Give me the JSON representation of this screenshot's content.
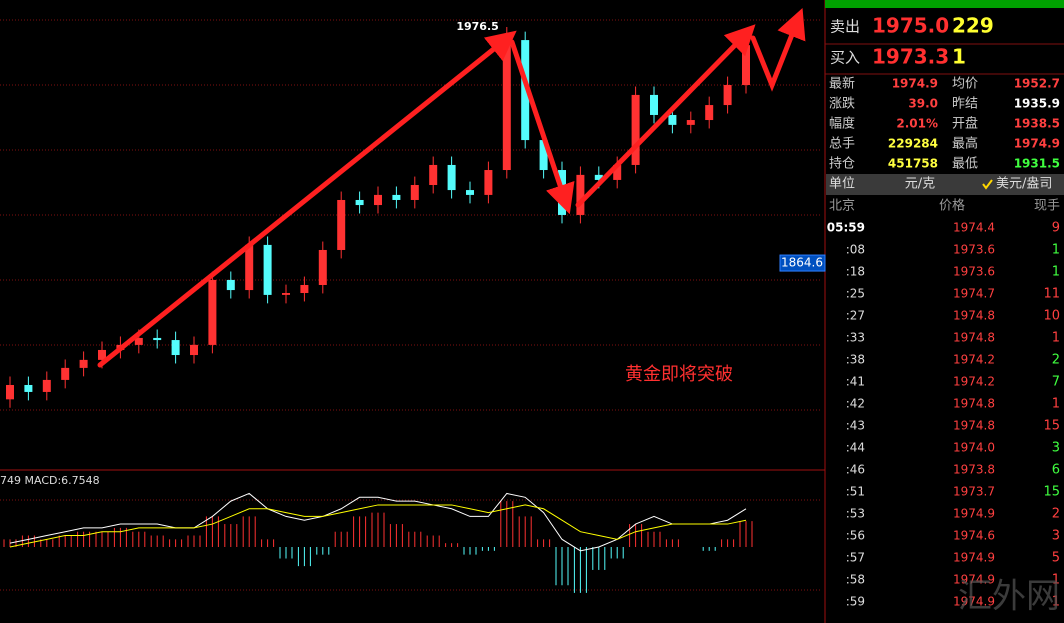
{
  "chart": {
    "type": "candlestick",
    "open": [
      1800.0,
      1806.8,
      1803.5,
      1809.2,
      1814.9,
      1818.7,
      1823.4,
      1825.8,
      1829.1,
      1828.1,
      1821.0,
      1825.8,
      1856.6,
      1851.8,
      1873.2,
      1849.5,
      1850.4,
      1854.2,
      1870.8,
      1894.5,
      1892.1,
      1896.9,
      1894.5,
      1901.6,
      1911.1,
      1899.2,
      1896.9,
      1908.7,
      1970.3,
      1922.9,
      1908.7,
      1887.4,
      1906.4,
      1904.0,
      1911.1,
      1944.3,
      1934.8,
      1930.1,
      1932.4,
      1939.5,
      1949.0
    ],
    "high": [
      1810.8,
      1810.8,
      1813.2,
      1818.9,
      1822.7,
      1827.4,
      1829.8,
      1833.1,
      1833.1,
      1832.1,
      1829.8,
      1860.6,
      1860.6,
      1877.2,
      1877.2,
      1854.4,
      1858.2,
      1874.8,
      1898.5,
      1898.5,
      1900.9,
      1900.9,
      1905.6,
      1915.1,
      1915.1,
      1903.2,
      1912.7,
      1976.5,
      1974.3,
      1926.9,
      1912.7,
      1910.4,
      1910.4,
      1915.1,
      1948.3,
      1948.3,
      1938.8,
      1936.4,
      1943.5,
      1953.0,
      1971.9
    ],
    "low": [
      1796.0,
      1799.5,
      1799.5,
      1805.2,
      1810.9,
      1814.7,
      1819.4,
      1821.8,
      1824.1,
      1817.0,
      1817.0,
      1821.8,
      1847.8,
      1847.8,
      1845.5,
      1845.5,
      1846.4,
      1850.2,
      1866.8,
      1888.1,
      1888.1,
      1890.5,
      1890.5,
      1897.6,
      1895.2,
      1892.9,
      1892.9,
      1904.7,
      1918.9,
      1904.7,
      1883.4,
      1883.4,
      1900.0,
      1900.0,
      1907.1,
      1930.8,
      1926.1,
      1926.1,
      1928.4,
      1935.5,
      1945.0
    ],
    "close": [
      1806.8,
      1803.5,
      1809.2,
      1814.9,
      1818.7,
      1823.4,
      1825.8,
      1829.1,
      1828.1,
      1821.0,
      1825.8,
      1856.6,
      1851.8,
      1873.2,
      1849.5,
      1850.4,
      1854.2,
      1870.8,
      1894.5,
      1892.1,
      1896.9,
      1894.5,
      1901.6,
      1911.1,
      1899.2,
      1896.9,
      1908.7,
      1970.3,
      1922.9,
      1908.7,
      1887.4,
      1906.4,
      1904.0,
      1911.1,
      1944.3,
      1934.8,
      1930.1,
      1932.4,
      1939.5,
      1949.0,
      1967.9
    ],
    "ylim": [
      1766.5,
      1989.3
    ],
    "up_color": "#ff3232",
    "down_color": "#54fcfc",
    "peak_label": 1976.5,
    "price_marker": 1864.6,
    "annotation": "黄金即将突破"
  },
  "macd": {
    "label": "749 MACD:6.7548",
    "histogram": [
      2,
      3,
      2,
      3,
      4,
      4,
      5,
      4,
      3,
      2,
      3,
      8,
      6,
      8,
      2,
      -3,
      -5,
      -2,
      4,
      8,
      9,
      6,
      4,
      3,
      1,
      -2,
      -1,
      12,
      8,
      2,
      -10,
      -12,
      -6,
      -3,
      6,
      4,
      2,
      0,
      -1,
      2,
      6.7548
    ],
    "dif": [
      1,
      2,
      3,
      4,
      5,
      5,
      6,
      6,
      6,
      5,
      5,
      8,
      12,
      14,
      10,
      8,
      7,
      8,
      10,
      13,
      13,
      12,
      12,
      11,
      10,
      8,
      8,
      14,
      13,
      9,
      2,
      -1,
      0,
      2,
      6,
      8,
      6,
      6,
      6,
      7,
      10
    ],
    "dea": [
      0,
      1,
      2,
      3,
      3,
      4,
      4,
      5,
      5,
      5,
      5,
      6,
      8,
      10,
      10,
      9,
      8,
      8,
      9,
      10,
      11,
      11,
      11,
      11,
      11,
      10,
      9,
      10,
      11,
      10,
      7,
      4,
      3,
      2,
      4,
      5,
      6,
      6,
      6,
      6,
      7
    ],
    "ylim": [
      -17,
      17
    ],
    "dif_color": "#ffffff",
    "dea_color": "#ffff00"
  },
  "quote": {
    "sell": {
      "label": "卖出",
      "price": "1975.0",
      "volume": "229"
    },
    "buy": {
      "label": "买入",
      "price": "1973.3",
      "volume": "1"
    },
    "rows": [
      [
        "最新",
        "1974.9",
        "均价",
        "1952.7"
      ],
      [
        "涨跌",
        "39.0",
        "昨结",
        "1935.9"
      ],
      [
        "幅度",
        "2.01%",
        "开盘",
        "1938.5"
      ],
      [
        "总手",
        "229284",
        "最高",
        "1974.9"
      ],
      [
        "持仓",
        "451758",
        "最低",
        "1931.5"
      ]
    ],
    "value_colors": [
      [
        "#ff4040",
        "#ff4040"
      ],
      [
        "#ff4040",
        "#ffffff"
      ],
      [
        "#ff4040",
        "#ff4040"
      ],
      [
        "#ffff40",
        "#ff4040"
      ],
      [
        "#ffff40",
        "#40ff40"
      ]
    ],
    "unit": {
      "label": "单位",
      "value": "元/克",
      "option": "美元/盎司"
    }
  },
  "trades": {
    "headers": [
      "北京",
      "价格",
      "现手"
    ],
    "times": [
      "05:59",
      ":08",
      ":18",
      ":25",
      ":27",
      ":33",
      ":38",
      ":41",
      ":42",
      ":43",
      ":44",
      ":46",
      ":51",
      ":53",
      ":56",
      ":57",
      ":58",
      ":59"
    ],
    "prices": [
      "1974.4",
      "1973.6",
      "1973.6",
      "1974.7",
      "1974.8",
      "1974.8",
      "1974.2",
      "1974.2",
      "1974.8",
      "1974.8",
      "1974.0",
      "1973.8",
      "1973.7",
      "1974.9",
      "1974.6",
      "1974.9",
      "1974.9",
      "1974.9"
    ],
    "volumes": [
      9,
      1,
      1,
      11,
      10,
      1,
      2,
      7,
      1,
      15,
      3,
      6,
      15,
      2,
      3,
      5,
      1,
      1
    ],
    "volume_colors": [
      "#ff4040",
      "#40ff40",
      "#40ff40",
      "#ff4040",
      "#ff4040",
      "#ff4040",
      "#40ff40",
      "#40ff40",
      "#ff4040",
      "#ff4040",
      "#40ff40",
      "#40ff40",
      "#40ff40",
      "#ff4040",
      "#ff4040",
      "#ff4040",
      "#ff4040",
      "#ff4040"
    ]
  },
  "watermark": "汇外网"
}
